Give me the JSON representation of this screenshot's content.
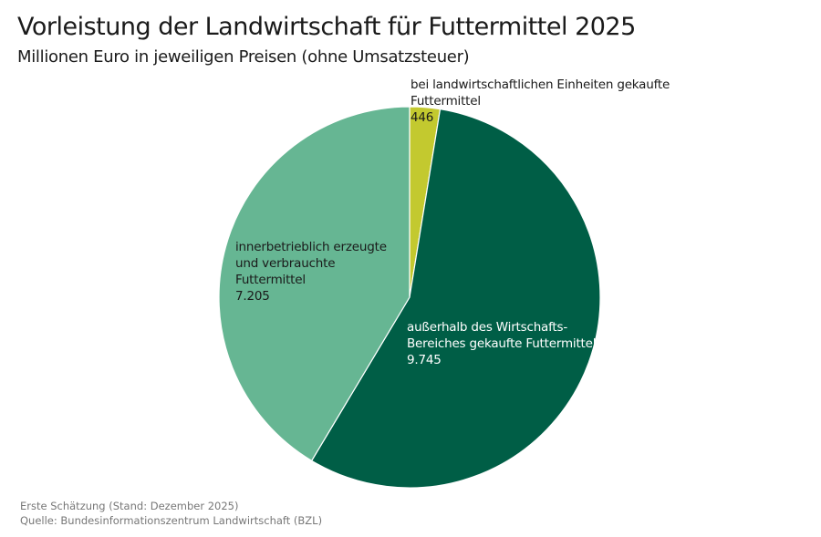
{
  "chart_data": {
    "type": "pie",
    "title": "Vorleistung der Landwirtschaft für Futtermittel 2025",
    "subtitle": "Millionen Euro in jeweiligen Preisen (ohne Umsatzsteuer)",
    "start_angle": "top",
    "direction": "clockwise",
    "slices": [
      {
        "label": "bei landwirtschaftlichen Einheiten gekaufte Futtermittel",
        "value": 446,
        "value_label": "446",
        "color": "#c3c92f"
      },
      {
        "label": "außerhalb des Wirtschafts-Bereiches gekaufte Futtermittel",
        "value": 9745,
        "value_label": "9.745",
        "color": "#005e46"
      },
      {
        "label": "innerbetrieblich erzeugte und verbrauchte Futtermittel",
        "value": 7205,
        "value_label": "7.205",
        "color": "#66b693"
      }
    ]
  },
  "footer": {
    "note": "Erste Schätzung (Stand: Dezember 2025)",
    "source": "Quelle: Bundesinformationszentrum Landwirtschaft (BZL)"
  }
}
